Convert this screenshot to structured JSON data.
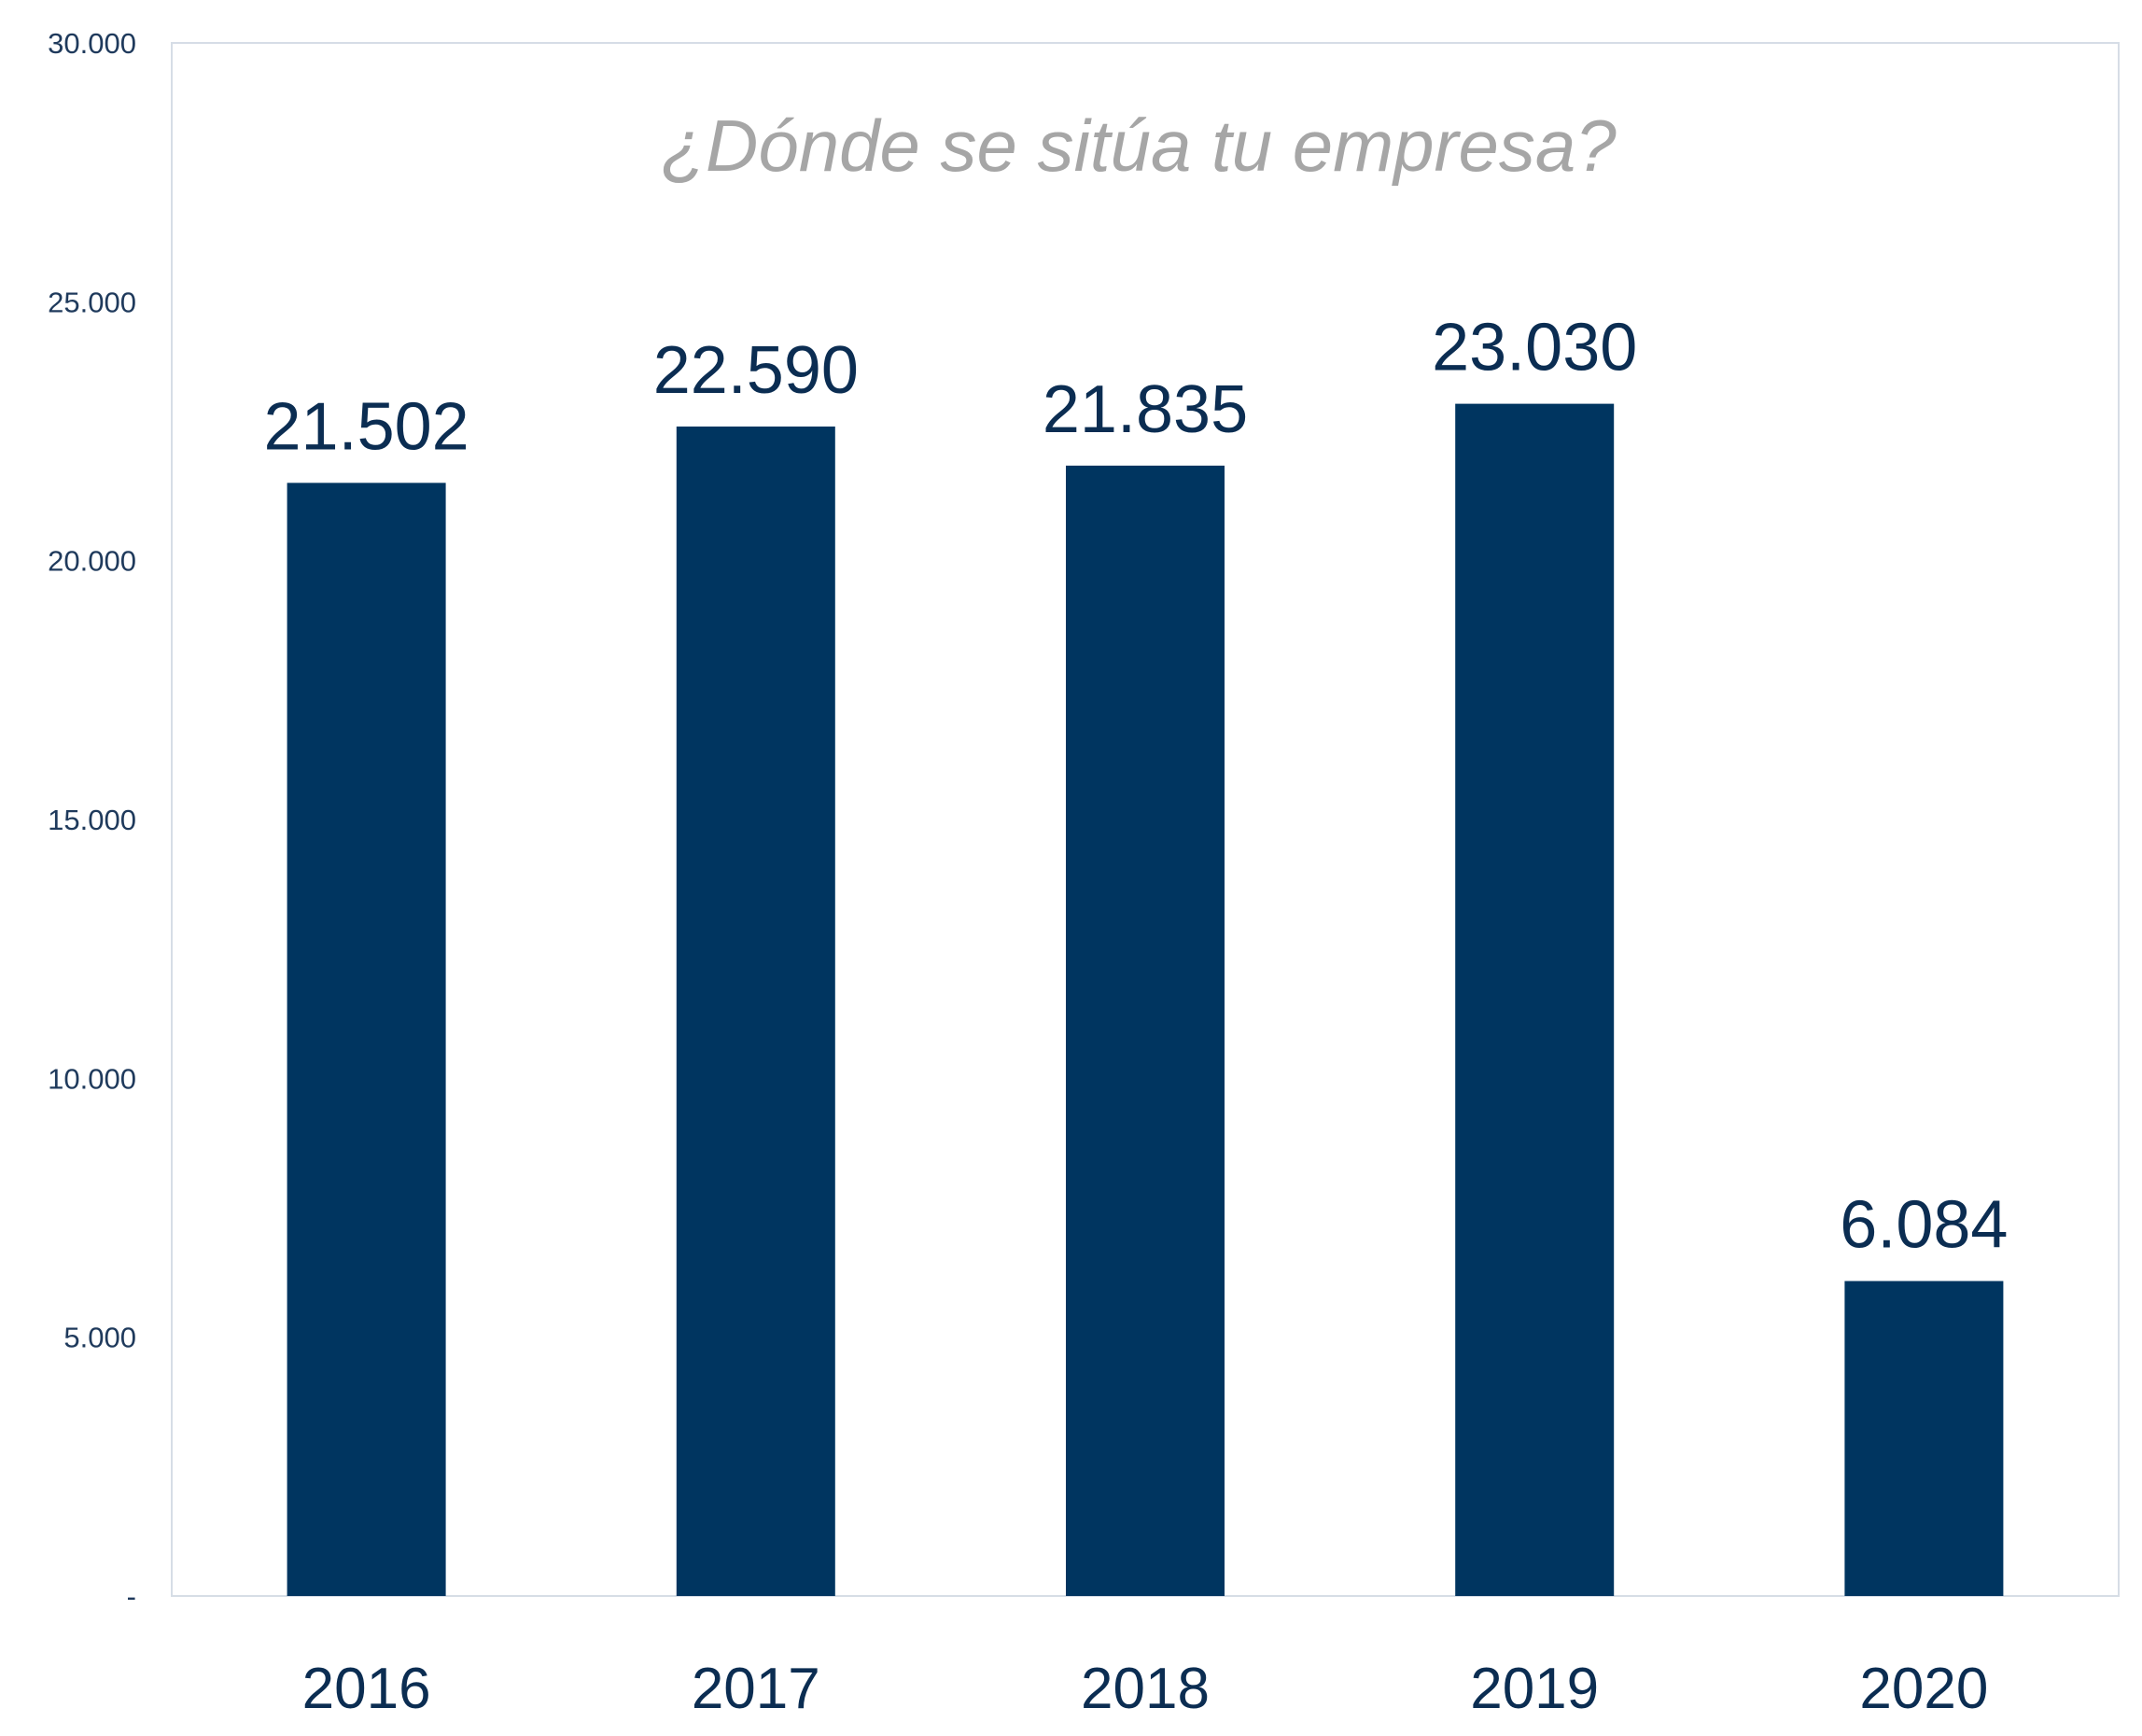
{
  "chart_data": {
    "type": "bar",
    "title": "¿Dónde se sitúa tu empresa?",
    "xlabel": "",
    "ylabel": "",
    "categories": [
      "2016",
      "2017",
      "2018",
      "2019",
      "2020"
    ],
    "values": [
      21502,
      22590,
      21835,
      23030,
      6084
    ],
    "data_labels": [
      "21.502",
      "22.590",
      "21.835",
      "23.030",
      "6.084"
    ],
    "ylim": [
      0,
      30000
    ],
    "yticks": [
      0,
      5000,
      10000,
      15000,
      20000,
      25000,
      30000
    ],
    "ytick_labels": [
      "-",
      "5.000",
      "10.000",
      "15.000",
      "20.000",
      "25.000",
      "30.000"
    ],
    "grid": false,
    "legend": "none",
    "colors": {
      "bar": "#003560",
      "title": "#a6a6a6",
      "labels": "#0b2d52",
      "axis": "#d6dde6"
    }
  }
}
